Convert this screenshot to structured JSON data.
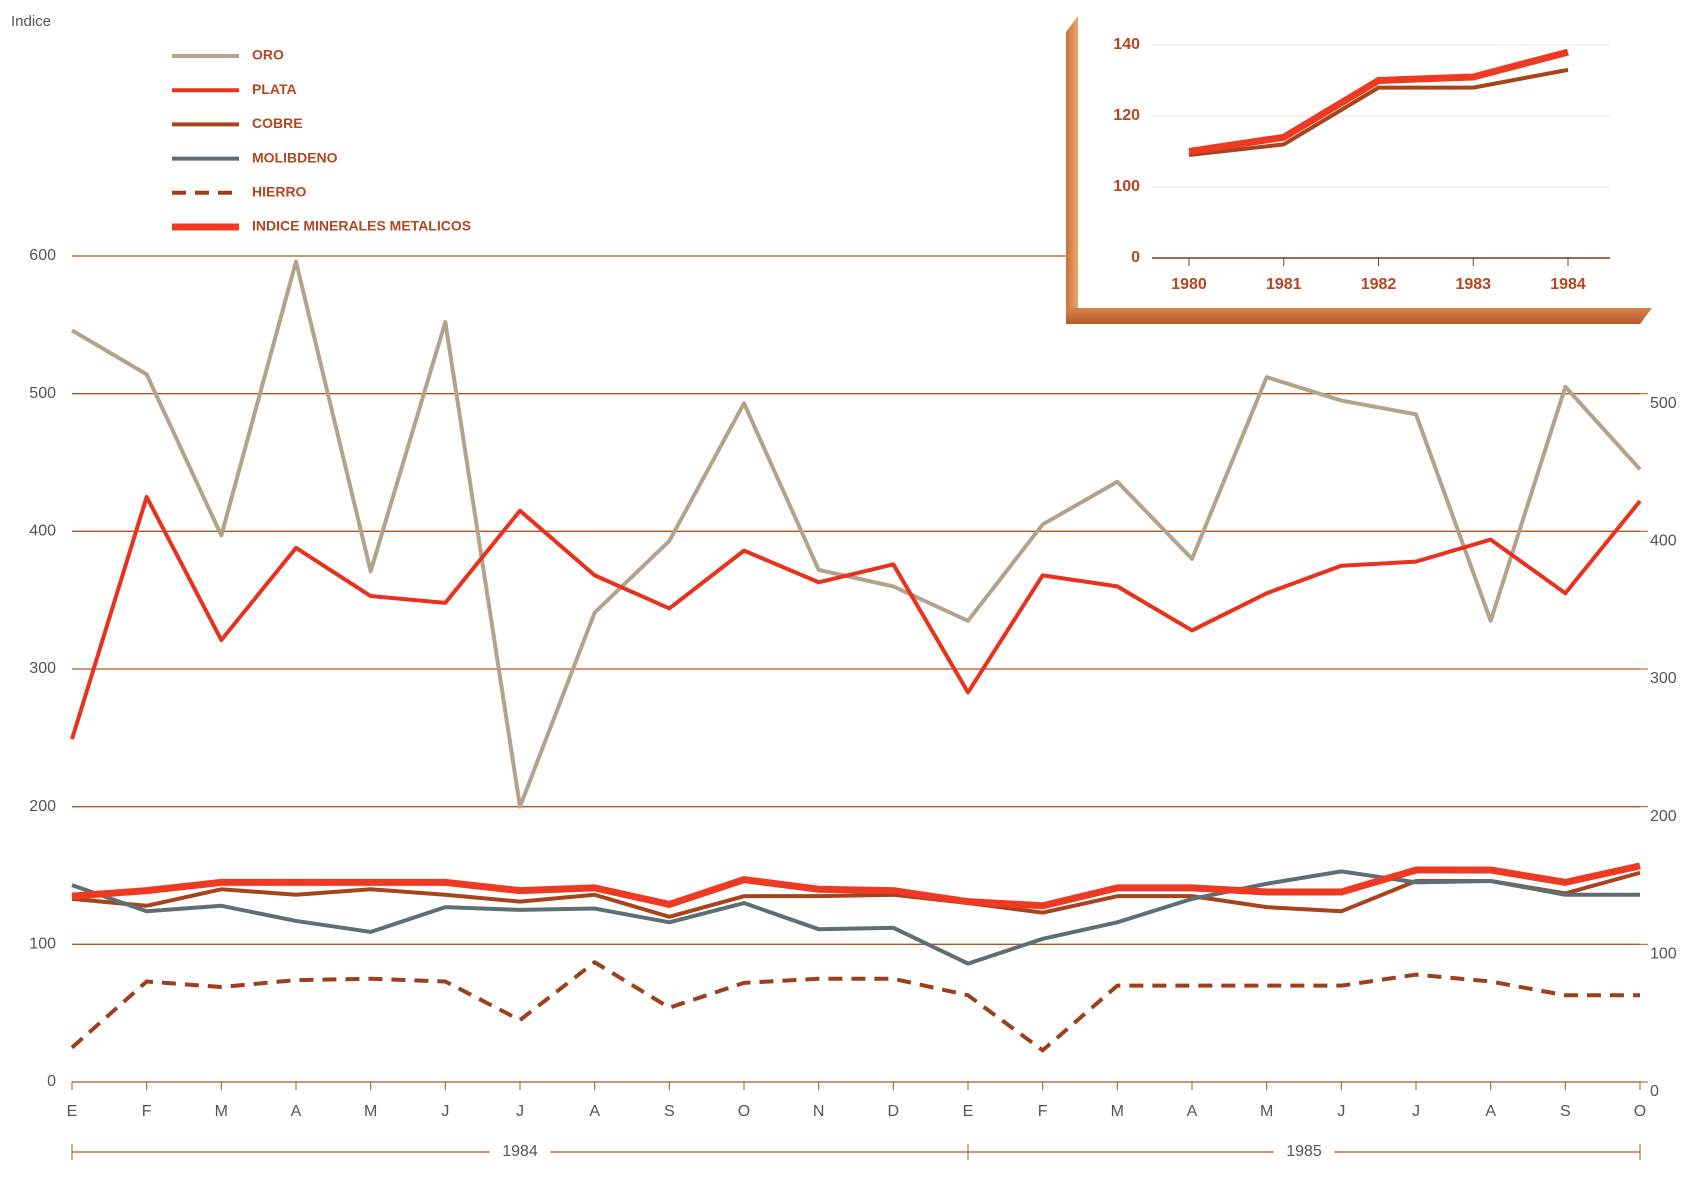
{
  "chart_data": [
    {
      "type": "line",
      "y_label": "Indice",
      "categories": [
        "E",
        "F",
        "M",
        "A",
        "M",
        "J",
        "J",
        "A",
        "S",
        "O",
        "N",
        "D",
        "E",
        "F",
        "M",
        "A",
        "M",
        "J",
        "J",
        "A",
        "S",
        "O"
      ],
      "groups": [
        {
          "label": "1984",
          "count": 12
        },
        {
          "label": "1985",
          "count": 10
        }
      ],
      "ylim": [
        0,
        600
      ],
      "yticks": [
        0,
        100,
        200,
        300,
        400,
        500,
        600
      ],
      "y2lim": [
        0,
        600
      ],
      "y2ticks": [
        0,
        100,
        200,
        300,
        400,
        500
      ],
      "grid": true,
      "legend": "top-left",
      "series": [
        {
          "name": "ORO",
          "color": "#b3a38a",
          "values": [
            546,
            514,
            397,
            596,
            371,
            552,
            200,
            341,
            393,
            493,
            372,
            360,
            335,
            405,
            436,
            380,
            512,
            495,
            485,
            335,
            505,
            445
          ]
        },
        {
          "name": "PLATA",
          "color": "#e8321e",
          "values": [
            249,
            425,
            321,
            388,
            353,
            348,
            415,
            368,
            344,
            386,
            363,
            376,
            283,
            368,
            360,
            328,
            355,
            375,
            378,
            394,
            355,
            422
          ]
        },
        {
          "name": "COBRE",
          "color": "#a8441c",
          "values": [
            133,
            128,
            140,
            136,
            140,
            136,
            131,
            136,
            120,
            135,
            135,
            136,
            130,
            123,
            135,
            135,
            127,
            124,
            146,
            146,
            137,
            152
          ]
        },
        {
          "name": "MOLIBDENO",
          "color": "#5e6f73",
          "values": [
            143,
            124,
            128,
            117,
            109,
            127,
            125,
            126,
            116,
            130,
            111,
            112,
            86,
            104,
            116,
            133,
            144,
            153,
            145,
            146,
            136,
            136
          ]
        },
        {
          "name": "HIERRO",
          "color": "#9c3f1c",
          "dashed": true,
          "values": [
            25,
            73,
            69,
            74,
            75,
            73,
            45,
            87,
            54,
            72,
            75,
            75,
            63,
            23,
            70,
            70,
            70,
            70,
            78,
            73,
            63,
            63
          ]
        },
        {
          "name": "INDICE MINERALES METALICOS",
          "color": "#ee3a22",
          "bold": true,
          "values": [
            135,
            139,
            145,
            145,
            145,
            145,
            139,
            141,
            129,
            147,
            140,
            139,
            131,
            128,
            141,
            141,
            138,
            138,
            154,
            154,
            145,
            157
          ]
        }
      ]
    },
    {
      "type": "line",
      "categories": [
        "1980",
        "1981",
        "1982",
        "1983",
        "1984"
      ],
      "ylim": [
        0,
        140
      ],
      "yticks": [
        0,
        100,
        120,
        140
      ],
      "axis_break": true,
      "grid": true,
      "series": [
        {
          "color": "#a8441c",
          "values": [
            109,
            112,
            128,
            128,
            133
          ]
        },
        {
          "color": "#ee3a22",
          "bold": true,
          "values": [
            110,
            114,
            130,
            131,
            138
          ]
        }
      ]
    }
  ]
}
